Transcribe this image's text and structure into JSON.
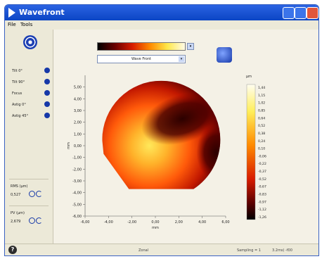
{
  "window": {
    "title": "Wavefront"
  },
  "menu": {
    "file": "File",
    "tools": "Tools"
  },
  "left_panel": {
    "rows": [
      {
        "label": "Tilt 0°",
        "icon": "tilt-0-icon"
      },
      {
        "label": "Tilt 90°",
        "icon": "tilt-90-icon"
      },
      {
        "label": "Focus",
        "icon": "focus-icon"
      },
      {
        "label": "Astig 0°",
        "icon": "astig-0-icon"
      },
      {
        "label": "Astig 45°",
        "icon": "astig-45-icon"
      }
    ],
    "rms": {
      "label": "RMS (µm)",
      "value": "0,527"
    },
    "pv": {
      "label": "PV (µm)",
      "value": "2,679"
    }
  },
  "display": {
    "mode": "Wave Front"
  },
  "chart_data": {
    "type": "heatmap",
    "xlabel": "mm",
    "ylabel": "mm",
    "xlim": [
      -6.0,
      6.0
    ],
    "ylim": [
      -6.0,
      6.0
    ],
    "x_ticks": [
      "-6,00",
      "-4,00",
      "-2,00",
      "0,00",
      "2,00",
      "4,00",
      "6,00"
    ],
    "y_ticks": [
      "5,00",
      "4,00",
      "3,00",
      "2,00",
      "1,00",
      "0,00",
      "-1,00",
      "-2,00",
      "-3,00",
      "-4,00",
      "-5,00",
      "-6,00"
    ],
    "colorbar": {
      "unit": "µm",
      "labels": [
        "1,44",
        "1,15",
        "1,02",
        "0,85",
        "0,64",
        "0,52",
        "0,38",
        "0,24",
        "0,10",
        "-0,06",
        "-0,22",
        "-0,37",
        "-0,52",
        "-0,67",
        "-0,83",
        "-0,97",
        "-1,12",
        "-1,26"
      ]
    }
  },
  "status": {
    "zonal": "Zonal",
    "sampling": "Sampling = 1",
    "fps": "3.2ms) -f00"
  },
  "colors": {
    "accent": "#1638a8",
    "title_bar": "#0b45c4"
  }
}
